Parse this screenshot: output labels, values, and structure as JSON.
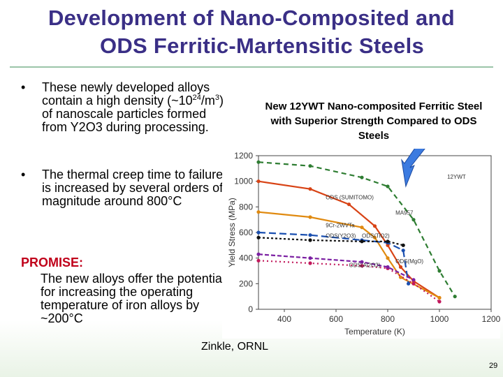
{
  "slide": {
    "title_line1": "Development of Nano-Composited and",
    "title_line2": "ODS Ferritic-Martensitic Steels",
    "bullets": [
      {
        "symbol": "•",
        "text_pre": "These newly developed alloys contain a high density (~10",
        "sup1": "24",
        "text_mid": "/m",
        "sup2": "3",
        "text_post": ") of nanoscale particles formed from Y2O3 during processing."
      },
      {
        "symbol": "•",
        "text": "The thermal creep time to failure is increased by several orders of magnitude around 800°C"
      }
    ],
    "promise_heading": "PROMISE:",
    "promise_text": "The new alloys offer the potential for increasing the operating temperature of iron alloys by ~200°C",
    "chart_caption": "New 12YWT Nano-composited Ferritic Steel with Superior Strength Compared to ODS Steels",
    "credit": "Zinkle, ORNL",
    "slide_number": "29",
    "colors": {
      "title": "#3a2f86",
      "promise": "#c0001a",
      "arrow": "#3c7be0"
    }
  },
  "chart_data": {
    "type": "line",
    "xlabel": "Temperature (K)",
    "ylabel": "Yield Stress (MPa)",
    "xlim": [
      300,
      1200
    ],
    "ylim": [
      0,
      1200
    ],
    "x_ticks": [
      "400",
      "600",
      "800",
      "1000",
      "1200"
    ],
    "y_ticks": [
      "0",
      "200",
      "400",
      "600",
      "800",
      "1000",
      "1200"
    ],
    "grid": false,
    "series": [
      {
        "name": "12YWT",
        "color": "#2e7d32",
        "dash": "7,5",
        "x": [
          300,
          500,
          700,
          800,
          900,
          1000,
          1060
        ],
        "y": [
          1150,
          1120,
          1030,
          960,
          700,
          300,
          100
        ]
      },
      {
        "name": "ODS (SUMITOMO)",
        "color": "#d84315",
        "dash": "",
        "x": [
          300,
          500,
          650,
          750,
          800,
          850,
          900,
          1000
        ],
        "y": [
          1000,
          940,
          820,
          650,
          500,
          330,
          220,
          90
        ]
      },
      {
        "name": "MA957",
        "color": "#e08a10",
        "dash": "",
        "x": [
          300,
          500,
          700,
          750,
          800,
          850,
          1000
        ],
        "y": [
          760,
          720,
          640,
          560,
          400,
          250,
          90
        ]
      },
      {
        "name": "9Cr-2WVTa",
        "color": "#1a4fb0",
        "dash": "10,5",
        "x": [
          300,
          500,
          700,
          800,
          860,
          880
        ],
        "y": [
          600,
          580,
          540,
          520,
          460,
          200
        ]
      },
      {
        "name": "ODS (Y2O3)",
        "color": "#111111",
        "dash": "3,3",
        "x": [
          300,
          500,
          700,
          800,
          860
        ],
        "y": [
          560,
          540,
          530,
          530,
          500
        ]
      },
      {
        "name": "ODS (TiO2)",
        "color": "#c2185b",
        "dash": "2,4",
        "x": [
          300,
          500,
          700,
          800,
          900,
          1000
        ],
        "y": [
          380,
          360,
          340,
          320,
          200,
          60
        ]
      },
      {
        "name": "ODS (MgO)",
        "color": "#7b1fa2",
        "dash": "6,3",
        "x": [
          300,
          500,
          700,
          800,
          900
        ],
        "y": [
          430,
          400,
          370,
          330,
          230
        ]
      }
    ],
    "annotations": [
      "12YWT",
      "ODS (SUMITOMO)",
      "MA957",
      "9Cr-2WVTa",
      "ODS(Y2O3)",
      "ODS(TiO2)",
      "ODS(Al2O3)",
      "ODS(MgO)"
    ]
  }
}
